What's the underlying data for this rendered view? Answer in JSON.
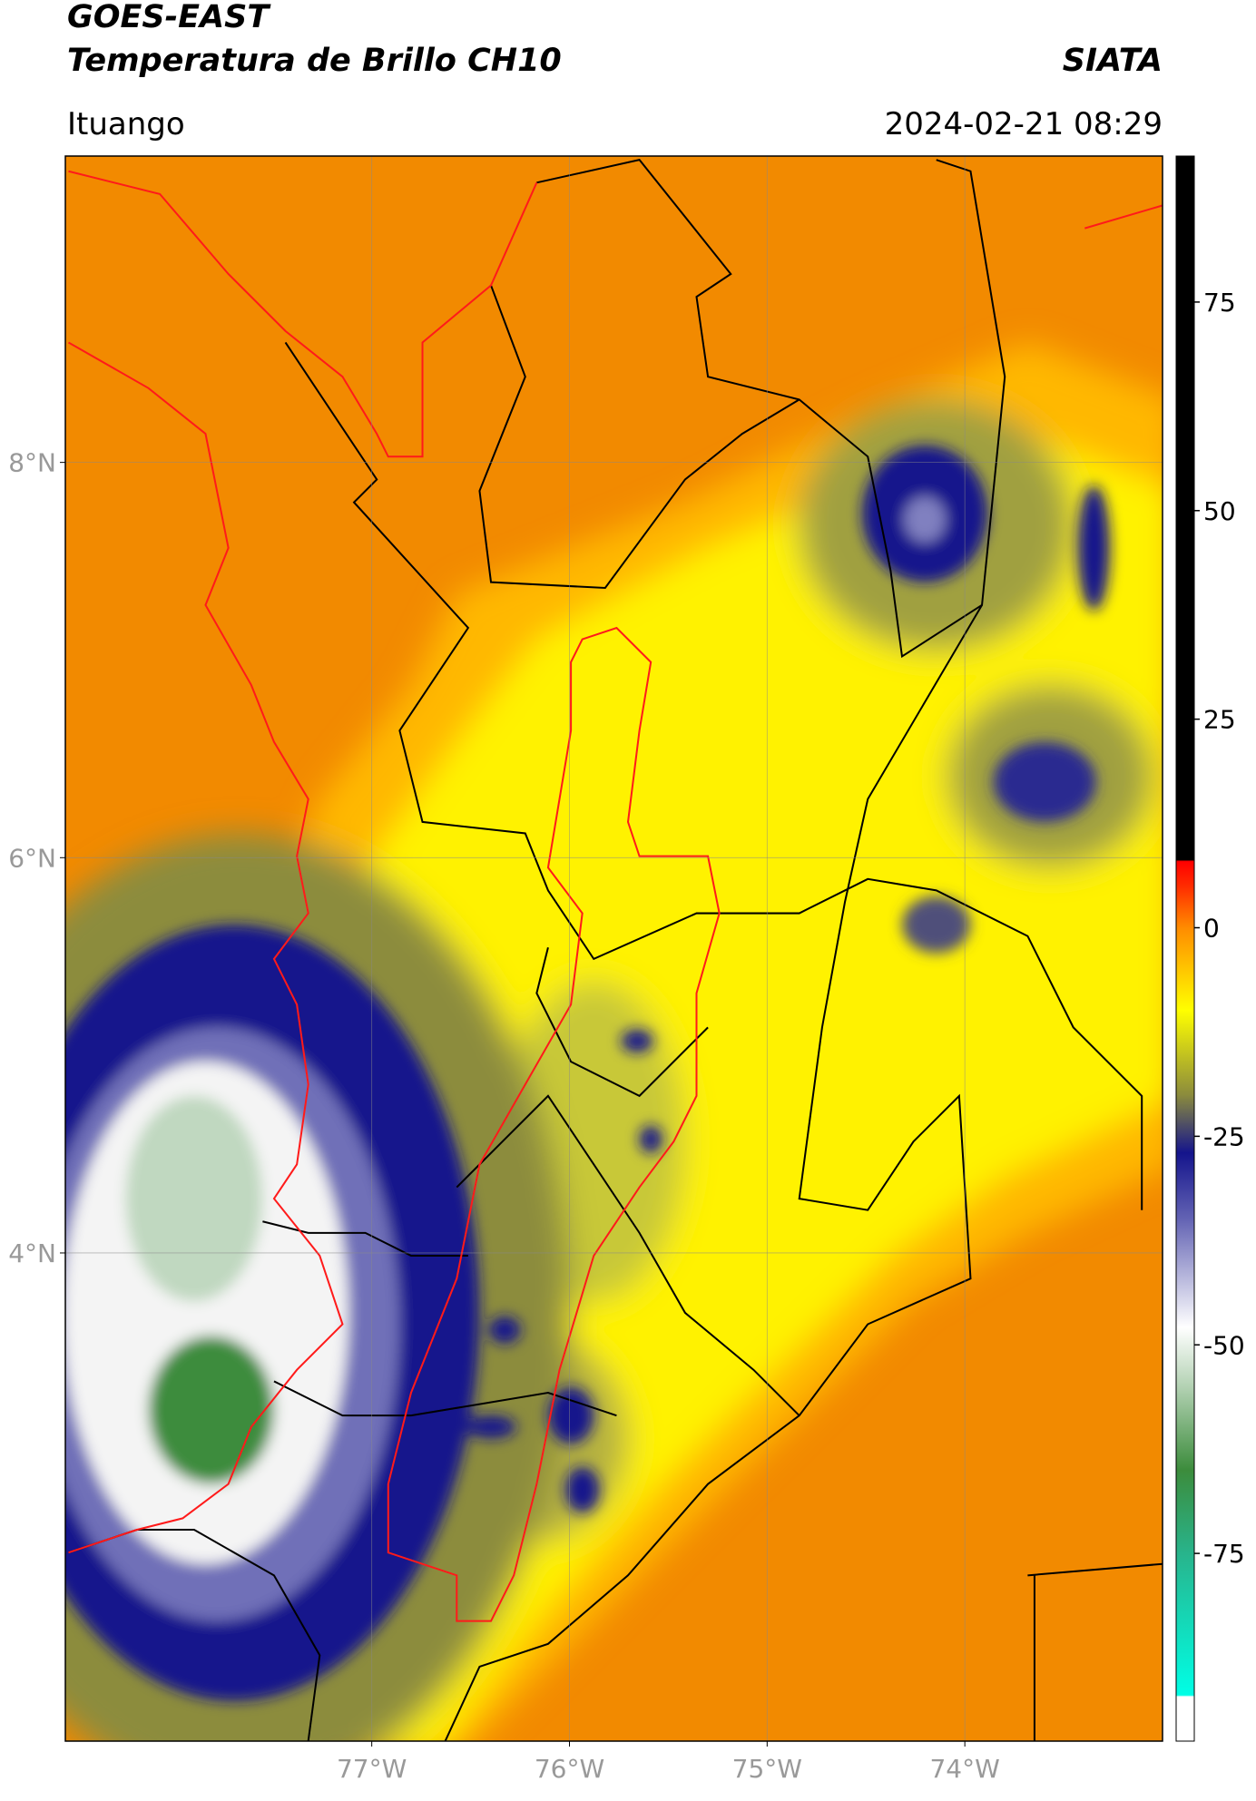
{
  "header": {
    "title": "GOES-EAST",
    "subtitle": "Temperatura de Brillo CH10",
    "brand": "SIATA",
    "location": "Ituango",
    "timestamp": "2024-02-21 08:29"
  },
  "map": {
    "xlim": [
      -78.55,
      -73.0
    ],
    "ylim": [
      1.53,
      9.55
    ],
    "xticks": [
      {
        "value": -77,
        "label": "77°W"
      },
      {
        "value": -76,
        "label": "76°W"
      },
      {
        "value": -75,
        "label": "75°W"
      },
      {
        "value": -74,
        "label": "74°W"
      }
    ],
    "yticks": [
      {
        "value": 4,
        "label": "4°N"
      },
      {
        "value": 6,
        "label": "6°N"
      },
      {
        "value": 8,
        "label": "8°N"
      }
    ],
    "grid": true
  },
  "colorbar": {
    "lim": [
      -97.5,
      92.5
    ],
    "ticks": [
      -75,
      -50,
      -25,
      0,
      25,
      50,
      75
    ]
  }
}
